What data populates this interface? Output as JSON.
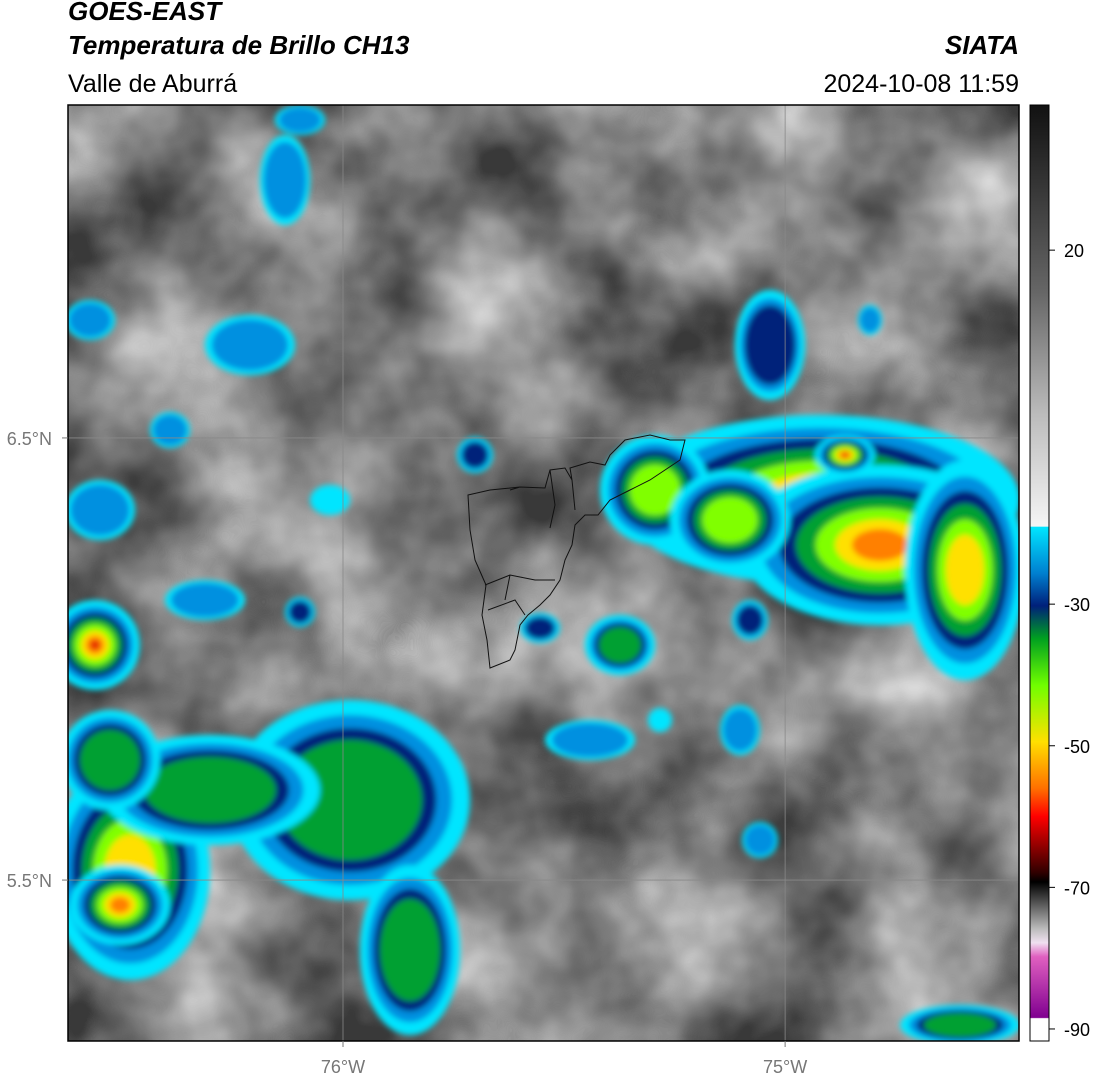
{
  "header": {
    "title": "GOES-EAST",
    "subtitle": "Temperatura de Brillo CH13",
    "region": "Valle de Aburrá",
    "source": "SIATA",
    "timestamp": "2024-10-08 11:59"
  },
  "map": {
    "lonlim": [
      -76.622,
      -74.471
    ],
    "latlim": [
      5.136,
      7.253
    ],
    "lat_ticks": [
      {
        "value": 6.5,
        "label": "6.5°N"
      },
      {
        "value": 5.5,
        "label": "5.5°N"
      }
    ],
    "lon_ticks": [
      {
        "value": -76,
        "label": "76°W"
      },
      {
        "value": -75,
        "label": "75°W"
      }
    ]
  },
  "colorbar": {
    "lim": [
      -91.7,
      40.5
    ],
    "ticks": [
      20,
      -30,
      -50,
      -70,
      -90
    ]
  }
}
